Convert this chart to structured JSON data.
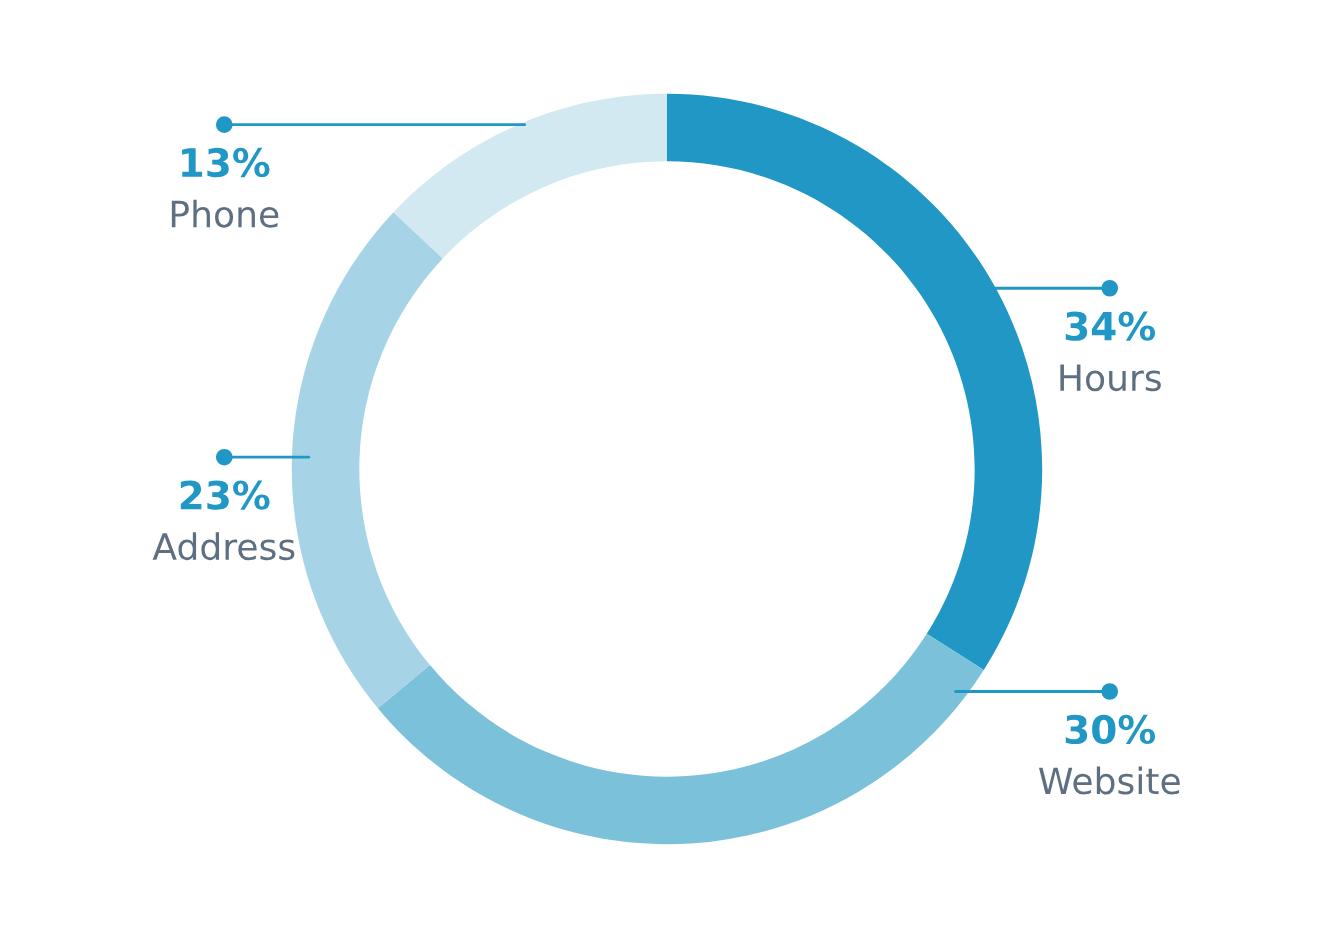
{
  "chart_data": {
    "type": "donut",
    "categories": [
      "Hours",
      "Website",
      "Address",
      "Phone"
    ],
    "values": [
      34,
      30,
      23,
      13
    ],
    "colors": [
      "#2097c4",
      "#7bc1d9",
      "#a6d4e6",
      "#d2e9f2"
    ],
    "value_labels": [
      "34%",
      "30%",
      "23%",
      "13%"
    ]
  }
}
